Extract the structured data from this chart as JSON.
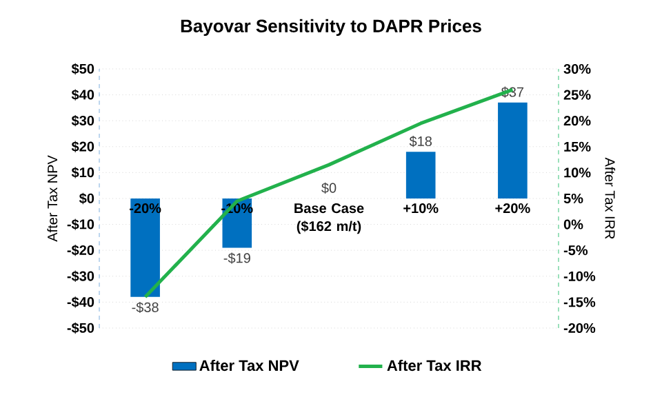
{
  "chart_data": {
    "type": "bar",
    "title": "Bayovar Sensitivity to DAPR Prices",
    "categories": [
      "-20%",
      "-10%",
      "Base Case ($162 m/t)",
      "+10%",
      "+20%"
    ],
    "series": [
      {
        "name": "After Tax NPV",
        "color": "#0070c0",
        "values": [
          -38,
          -19,
          0,
          18,
          37
        ],
        "value_labels": [
          "-$38",
          "-$19",
          "$0",
          "$18",
          "$37"
        ]
      },
      {
        "name": "After Tax IRR",
        "type": "line",
        "axis": "y2",
        "color": "#22b14c",
        "values": [
          -14,
          4.5,
          11.5,
          19.5,
          26
        ],
        "marker": "none",
        "line_style": "solid"
      }
    ],
    "ylabel": "After  Tax NPV",
    "y2label": "After  Tax IRR",
    "ylim": [
      -50,
      50
    ],
    "yticks": [
      {
        "value": -50,
        "label": "-$50"
      },
      {
        "value": -40,
        "label": "-$40"
      },
      {
        "value": -30,
        "label": "-$30"
      },
      {
        "value": -20,
        "label": "-$20"
      },
      {
        "value": -10,
        "label": "-$10"
      },
      {
        "value": 0,
        "label": "$0"
      },
      {
        "value": 10,
        "label": "$10"
      },
      {
        "value": 20,
        "label": "$20"
      },
      {
        "value": 30,
        "label": "$30"
      },
      {
        "value": 40,
        "label": "$40"
      },
      {
        "value": 50,
        "label": "$50"
      }
    ],
    "y2lim": [
      -20,
      30
    ],
    "y2ticks": [
      {
        "value": -20,
        "label": "-20%"
      },
      {
        "value": -15,
        "label": "-15%"
      },
      {
        "value": -10,
        "label": "-10%"
      },
      {
        "value": -5,
        "label": "-5%"
      },
      {
        "value": 0,
        "label": "0%"
      },
      {
        "value": 5,
        "label": "5%"
      },
      {
        "value": 10,
        "label": "10%"
      },
      {
        "value": 15,
        "label": "15%"
      },
      {
        "value": 20,
        "label": "20%"
      },
      {
        "value": 25,
        "label": "25%"
      },
      {
        "value": 30,
        "label": "30%"
      }
    ],
    "grid": "y",
    "legend": "bottom"
  }
}
